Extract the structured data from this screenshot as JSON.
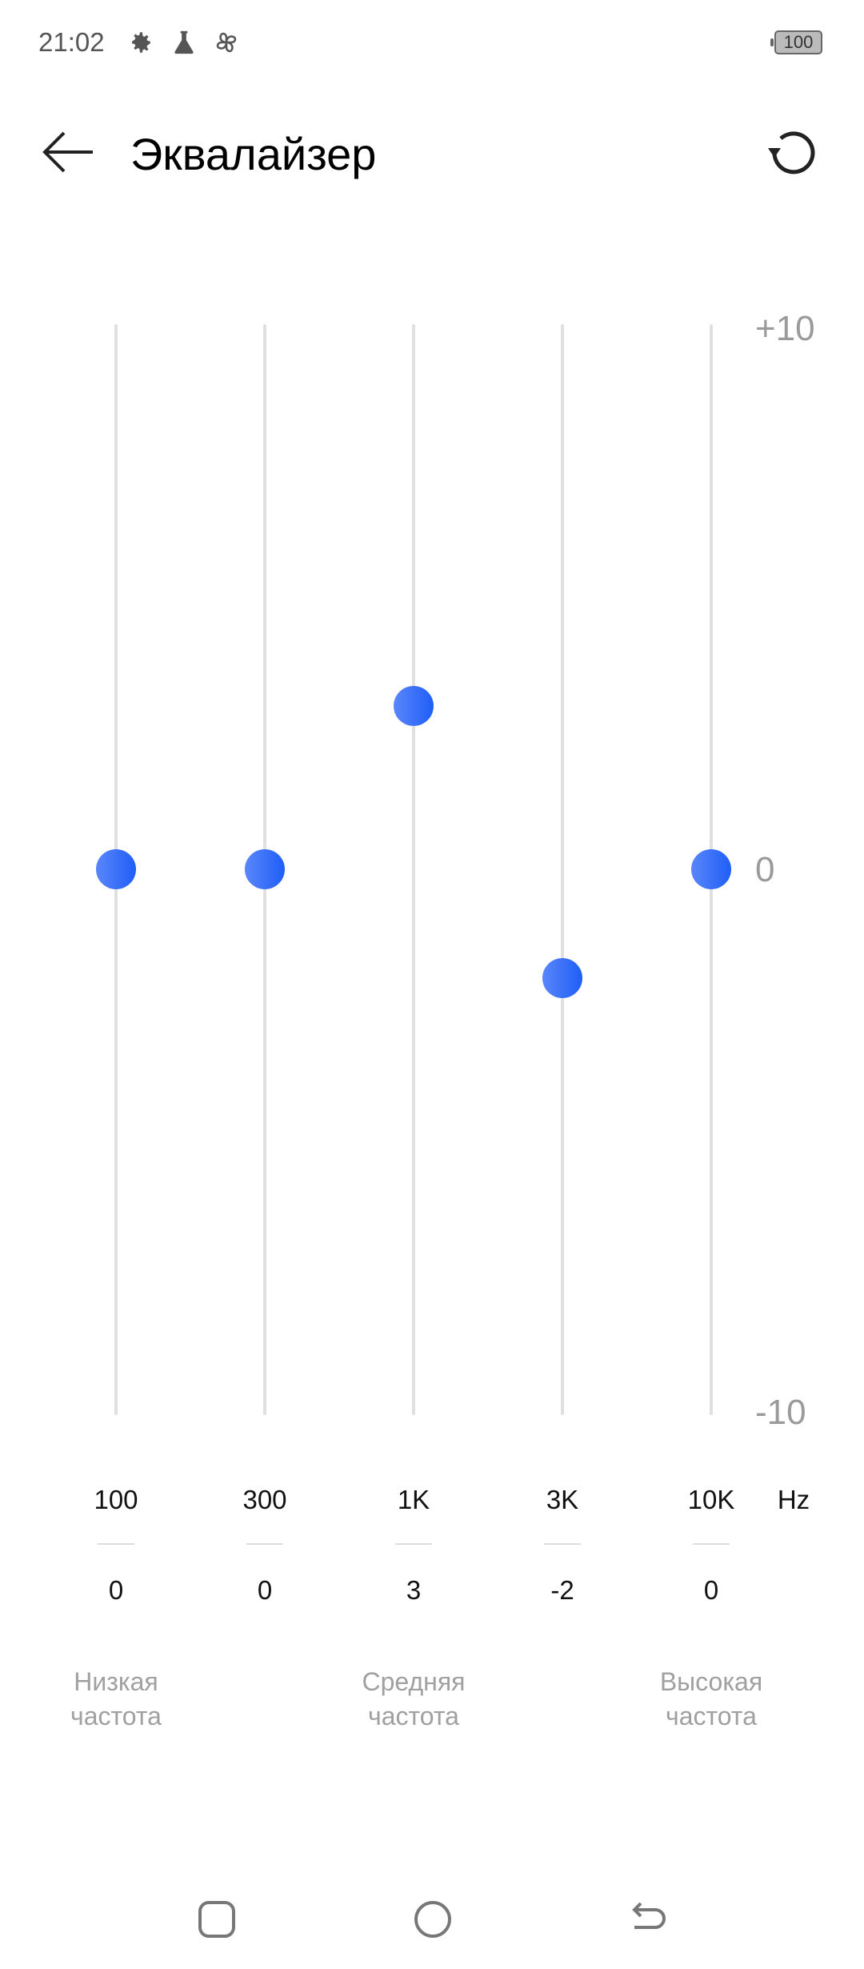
{
  "status_bar": {
    "time": "21:02",
    "icons": [
      "gear-icon",
      "flask-icon",
      "fan-icon"
    ],
    "battery": "100"
  },
  "header": {
    "title": "Эквалайзер",
    "back_icon": "arrow-left-icon",
    "reset_icon": "reset-icon"
  },
  "equalizer": {
    "max_label": "+10",
    "zero_label": "0",
    "min_label": "-10",
    "unit": "Hz",
    "range": [
      -10,
      10
    ],
    "accent_color": "#2f66f8",
    "bands": [
      {
        "freq": "100",
        "value": 0
      },
      {
        "freq": "300",
        "value": 0
      },
      {
        "freq": "1K",
        "value": 3
      },
      {
        "freq": "3K",
        "value": -2
      },
      {
        "freq": "10K",
        "value": 0
      }
    ],
    "groups": [
      {
        "line1": "Низкая",
        "line2": "частота"
      },
      {
        "line1": "Средняя",
        "line2": "частота"
      },
      {
        "line1": "Высокая",
        "line2": "частота"
      }
    ]
  },
  "nav_bar": {
    "icons": [
      "recents-icon",
      "home-icon",
      "back-icon"
    ]
  }
}
